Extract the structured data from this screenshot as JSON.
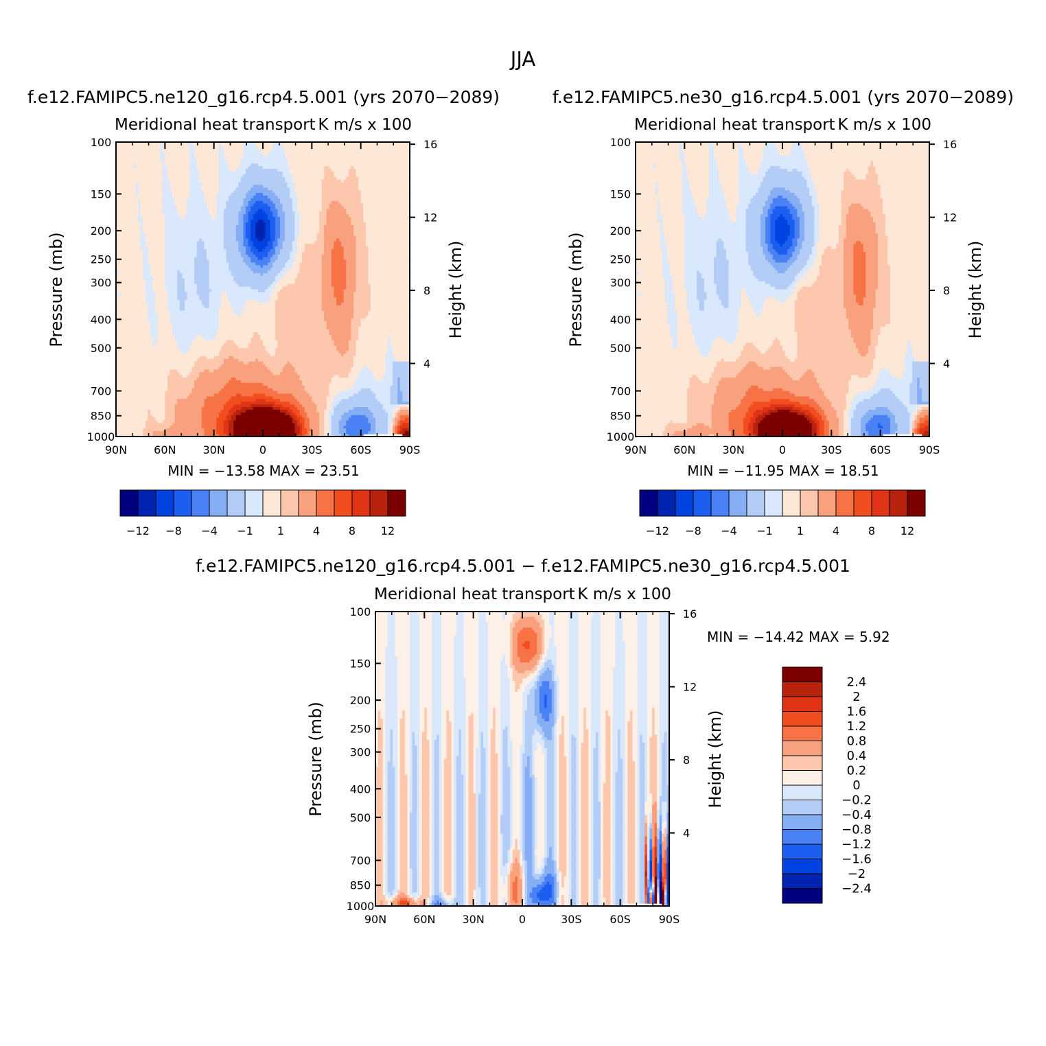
{
  "figure": {
    "title": "JJA",
    "units": "K m/s x 100",
    "diff_min_max": "MIN = −14.42   MAX =    5.92"
  },
  "chart_data": [
    {
      "type": "heatmap",
      "panel": "top-left",
      "subtitle": "f.e12.FAMIPC5.ne120_g16.rcp4.5.001 (yrs 2070−2089)",
      "title": "Meridional heat transport",
      "units": "K m/s x 100",
      "xlabel": "",
      "ylabel": "Pressure (mb)",
      "y2label": "Height (km)",
      "x_ticks": [
        "90N",
        "60N",
        "30N",
        "0",
        "30S",
        "60S",
        "90S"
      ],
      "y_ticks": [
        100,
        150,
        200,
        250,
        300,
        400,
        500,
        700,
        850,
        1000
      ],
      "y2_ticks": [
        16,
        12,
        8,
        4
      ],
      "min": -13.58,
      "max": 23.51,
      "min_max_text": "MIN = −13.58   MAX =   23.51",
      "colorbar_labels": [
        "−12",
        "−8",
        "−4",
        "−1",
        "1",
        "4",
        "8",
        "12"
      ],
      "features": [
        {
          "lat": 5,
          "p": 200,
          "value": -12
        },
        {
          "lat": 5,
          "p": 950,
          "value": 23.5
        },
        {
          "lat": -55,
          "p": 950,
          "value": -6
        },
        {
          "lat": -88,
          "p": 950,
          "value": 12
        },
        {
          "lat": -40,
          "p": 250,
          "value": 1
        }
      ]
    },
    {
      "type": "heatmap",
      "panel": "top-right",
      "subtitle": "f.e12.FAMIPC5.ne30_g16.rcp4.5.001 (yrs 2070−2089)",
      "title": "Meridional heat transport",
      "units": "K m/s x 100",
      "xlabel": "",
      "ylabel": "Pressure (mb)",
      "y2label": "Height (km)",
      "x_ticks": [
        "90N",
        "60N",
        "30N",
        "0",
        "30S",
        "60S",
        "90S"
      ],
      "y_ticks": [
        100,
        150,
        200,
        250,
        300,
        400,
        500,
        700,
        850,
        1000
      ],
      "y2_ticks": [
        16,
        12,
        8,
        4
      ],
      "min": -11.95,
      "max": 18.51,
      "min_max_text": "MIN = −11.95   MAX =   18.51",
      "colorbar_labels": [
        "−12",
        "−8",
        "−4",
        "−1",
        "1",
        "4",
        "8",
        "12"
      ],
      "features": [
        {
          "lat": 3,
          "p": 200,
          "value": -11
        },
        {
          "lat": 3,
          "p": 950,
          "value": 18.5
        },
        {
          "lat": -58,
          "p": 950,
          "value": -6
        },
        {
          "lat": -88,
          "p": 950,
          "value": 11
        },
        {
          "lat": -42,
          "p": 250,
          "value": 1
        }
      ]
    },
    {
      "type": "heatmap",
      "panel": "bottom",
      "subtitle": "f.e12.FAMIPC5.ne120_g16.rcp4.5.001 − f.e12.FAMIPC5.ne30_g16.rcp4.5.001",
      "title": "Meridional heat transport",
      "units": "K m/s x 100",
      "xlabel": "",
      "ylabel": "Pressure (mb)",
      "y2label": "Height (km)",
      "x_ticks": [
        "90N",
        "60N",
        "30N",
        "0",
        "30S",
        "60S",
        "90S"
      ],
      "y_ticks": [
        100,
        150,
        200,
        250,
        300,
        400,
        500,
        700,
        850,
        1000
      ],
      "y2_ticks": [
        16,
        12,
        8,
        4
      ],
      "min": -14.42,
      "max": 5.92,
      "min_max_text": "MIN = −14.42   MAX =    5.92",
      "colorbar_labels": [
        "2.4",
        "2",
        "1.6",
        "1.2",
        "0.8",
        "0.4",
        "0.2",
        "0",
        "−0.2",
        "−0.4",
        "−0.8",
        "−1.2",
        "−1.6",
        "−2",
        "−2.4"
      ],
      "features": [
        {
          "lat": -3,
          "p": 130,
          "value": 1.2
        },
        {
          "lat": -13,
          "p": 200,
          "value": -1.2
        },
        {
          "lat": -10,
          "p": 930,
          "value": -1.6
        },
        {
          "lat": -15,
          "p": 900,
          "value": -1.2
        },
        {
          "lat": 5,
          "p": 900,
          "value": 0.8
        },
        {
          "lat": 72,
          "p": 980,
          "value": 1.2
        },
        {
          "lat": -85,
          "p": 800,
          "value": -2.4
        },
        {
          "lat": -78,
          "p": 950,
          "value": 2.4
        }
      ]
    }
  ],
  "colors": {
    "seq_top": [
      "#000080",
      "#0024b0",
      "#0043e0",
      "#1c5ef0",
      "#4a82f5",
      "#86aef5",
      "#b3cdf7",
      "#d9e8fc",
      "#fde7d7",
      "#fcc7ad",
      "#f9a07e",
      "#f77346",
      "#f24d1f",
      "#e03416",
      "#b8230d",
      "#7d0000"
    ],
    "seq_diff": [
      "#000080",
      "#0024b0",
      "#0043e0",
      "#1c5ef0",
      "#4a82f5",
      "#86aef5",
      "#b3cdf7",
      "#d9e8fc",
      "#fdf0e6",
      "#fcc7ad",
      "#f9a07e",
      "#f77346",
      "#f24d1f",
      "#e03416",
      "#b8230d",
      "#7d0000"
    ]
  }
}
